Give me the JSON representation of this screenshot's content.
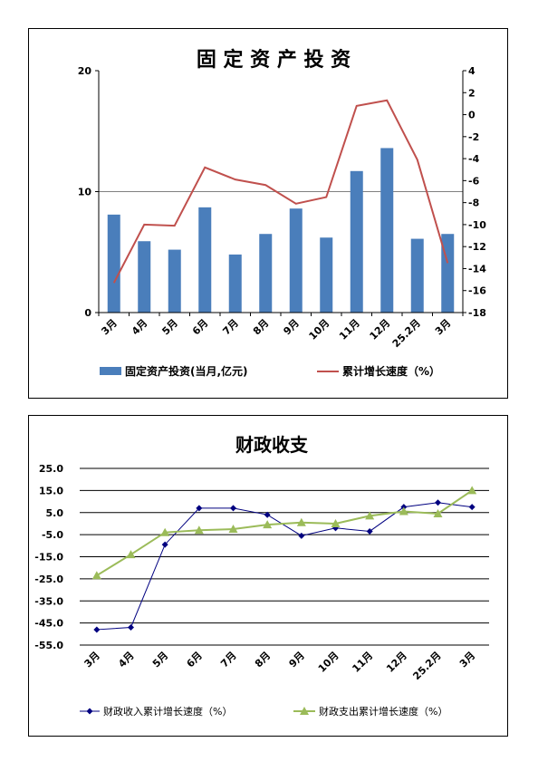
{
  "charts": [
    {
      "chart_data": {
        "type": "bar+line",
        "title": "固 定 资 产 投 资",
        "categories": [
          "3月",
          "4月",
          "5月",
          "6月",
          "7月",
          "8月",
          "9月",
          "10月",
          "11月",
          "12月",
          "25.2月",
          "3月"
        ],
        "series": [
          {
            "name": "固定资产投资(当月,亿元)",
            "type": "bar",
            "axis": "left",
            "color": "#4a7ebb",
            "values": [
              8.1,
              5.9,
              5.2,
              8.7,
              4.8,
              6.5,
              8.6,
              6.2,
              11.7,
              13.6,
              6.1,
              6.5
            ]
          },
          {
            "name": "累计增长速度（%）",
            "type": "line",
            "axis": "right",
            "color": "#c0504d",
            "values": [
              -15.3,
              -10.0,
              -10.1,
              -4.8,
              -5.9,
              -6.4,
              -8.1,
              -7.5,
              0.8,
              1.3,
              -4.1,
              -13.5
            ]
          }
        ],
        "y_left": {
          "min": 0,
          "max": 20,
          "ticks": [
            "0",
            "10",
            "20"
          ]
        },
        "y_right": {
          "min": -18,
          "max": 4,
          "ticks": [
            "4",
            "2",
            "0",
            "-2",
            "-4",
            "-6",
            "-8",
            "-10",
            "-12",
            "-14",
            "-16",
            "-18"
          ]
        },
        "gridline_at_left": 10,
        "legend": "bottom"
      }
    },
    {
      "chart_data": {
        "type": "line",
        "title": "财政收支",
        "categories": [
          "3月",
          "4月",
          "5月",
          "6月",
          "7月",
          "8月",
          "9月",
          "10月",
          "11月",
          "12月",
          "25.2月",
          "3月"
        ],
        "series": [
          {
            "name": "财政收入累计增长速度（%）",
            "color": "#000080",
            "marker": "diamond",
            "values": [
              -48.0,
              -47.0,
              -9.5,
              7.0,
              7.0,
              4.0,
              -5.5,
              -2.0,
              -3.5,
              7.5,
              9.5,
              7.5
            ]
          },
          {
            "name": "财政支出累计增长速度（%）",
            "color": "#9bbb59",
            "marker": "triangle",
            "values": [
              -23.5,
              -14.0,
              -4.0,
              -3.0,
              -2.5,
              -0.5,
              0.5,
              0.0,
              3.5,
              5.5,
              4.5,
              15.0
            ]
          }
        ],
        "ylim": [
          -55,
          25
        ],
        "yticks": [
          "25.0",
          "15.0",
          "5.0",
          "-5.0",
          "-15.0",
          "-25.0",
          "-35.0",
          "-45.0",
          "-55.0"
        ],
        "grid": true,
        "legend": "bottom"
      }
    }
  ]
}
